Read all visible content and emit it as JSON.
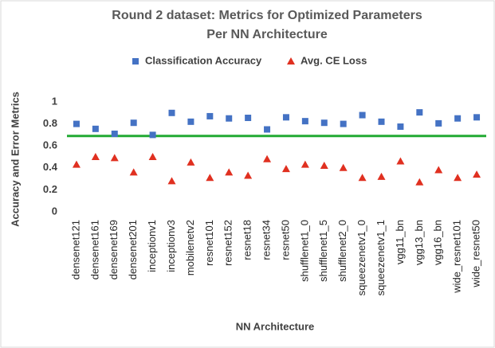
{
  "chart_data": {
    "type": "scatter",
    "title_lines": [
      "Round 2 dataset: Metrics for Optimized Parameters",
      "Per NN Architecture"
    ],
    "x_label": "NN Architecture",
    "y_label": "Accuracy and Error Metrics",
    "categories": [
      "densenet121",
      "densenet161",
      "densenet169",
      "densenet201",
      "inceptionv1",
      "inceptionv3",
      "mobilenetv2",
      "resnet101",
      "resnet152",
      "resnet18",
      "resnet34",
      "resnet50",
      "shufflenet1_0",
      "shufflenet1_5",
      "shufflenet2_0",
      "squeezenetv1_0",
      "squeezenetv1_1",
      "vgg11_bn",
      "vgg13_bn",
      "vgg16_bn",
      "wide_resnet101",
      "wide_resnet50"
    ],
    "series": [
      {
        "name": "Classification Accuracy",
        "color": "#4472c4",
        "marker": "square",
        "values": [
          0.8,
          0.755,
          0.71,
          0.81,
          0.7,
          0.9,
          0.82,
          0.87,
          0.85,
          0.855,
          0.75,
          0.86,
          0.825,
          0.81,
          0.8,
          0.88,
          0.82,
          0.775,
          0.905,
          0.805,
          0.85,
          0.86
        ]
      },
      {
        "name": "Avg. CE Loss",
        "color": "#e03020",
        "marker": "triangle",
        "values": [
          0.43,
          0.5,
          0.49,
          0.36,
          0.5,
          0.28,
          0.45,
          0.31,
          0.36,
          0.33,
          0.48,
          0.39,
          0.43,
          0.42,
          0.4,
          0.31,
          0.32,
          0.46,
          0.27,
          0.38,
          0.31,
          0.34
        ]
      }
    ],
    "reference_line": {
      "value": 0.69,
      "color": "#22aa33"
    },
    "ylim": [
      0,
      1
    ],
    "yticks": [
      0,
      0.2,
      0.4,
      0.6,
      0.8,
      1
    ],
    "legend": "top"
  }
}
